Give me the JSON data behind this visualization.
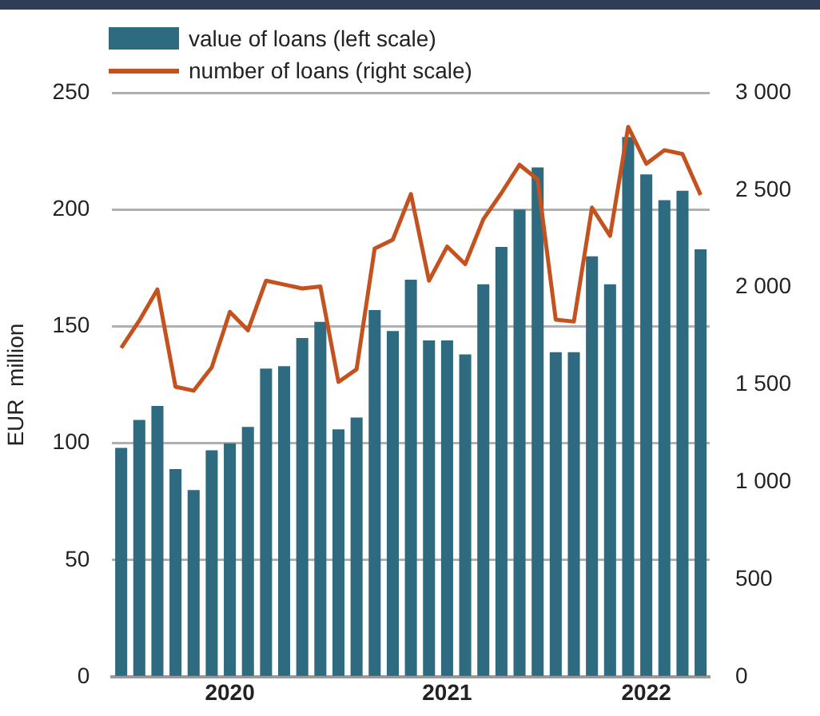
{
  "chart_data": {
    "type": "bar",
    "ylabel": "EUR  million",
    "categories": [
      null,
      null,
      null,
      null,
      null,
      null,
      "2020",
      null,
      null,
      null,
      null,
      null,
      null,
      null,
      null,
      null,
      null,
      null,
      "2021",
      null,
      null,
      null,
      null,
      null,
      null,
      null,
      null,
      null,
      null,
      "2022",
      null,
      null,
      null
    ],
    "series": [
      {
        "name": "value of loans (left scale)",
        "color": "#2e6b80",
        "values": [
          98,
          110,
          116,
          89,
          80,
          97,
          100,
          107,
          132,
          133,
          145,
          152,
          106,
          111,
          157,
          148,
          170,
          144,
          144,
          138,
          168,
          184,
          200,
          218,
          139,
          139,
          180,
          168,
          231,
          215,
          204,
          208,
          183
        ]
      },
      {
        "name": "number of loans (right scale)",
        "type": "line",
        "axis": "y2",
        "color": "#c4521e",
        "values": [
          1690,
          1830,
          1990,
          1490,
          1470,
          1590,
          1875,
          1780,
          2035,
          2015,
          1995,
          2005,
          1515,
          1580,
          2200,
          2245,
          2480,
          2035,
          2210,
          2120,
          2350,
          2485,
          2630,
          2555,
          1835,
          1825,
          2410,
          2265,
          2825,
          2635,
          2705,
          2685,
          2475
        ]
      }
    ],
    "ylim": [
      0,
      250
    ],
    "yticks": [
      0,
      50,
      100,
      150,
      200,
      250
    ],
    "y2lim": [
      0,
      3000
    ],
    "y2ticks": [
      0,
      500,
      {
        "value": 1000,
        "label": "1 000"
      },
      {
        "value": 1500,
        "label": "1 500"
      },
      {
        "value": 2000,
        "label": "2 000"
      },
      {
        "value": 2500,
        "label": "2 500"
      },
      {
        "value": 3000,
        "label": "3 000"
      }
    ],
    "grid": "y",
    "legend": "top left",
    "marker": "none"
  }
}
